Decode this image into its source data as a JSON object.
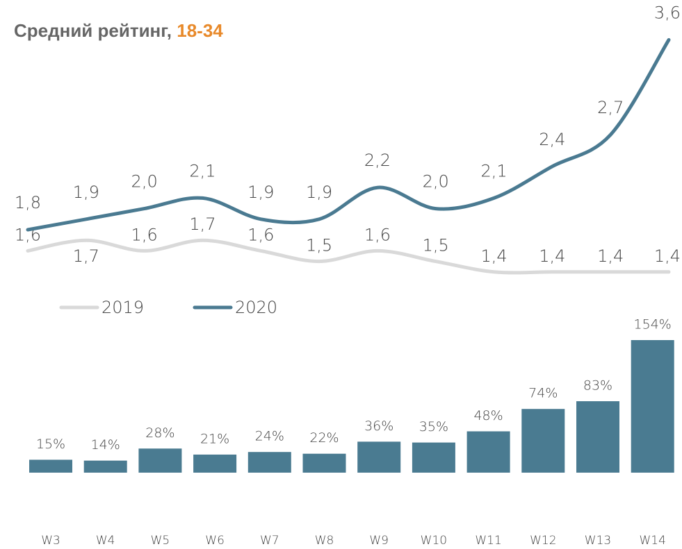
{
  "title": "Средний рейтинг,",
  "title_accent": "18-34",
  "chart_data": [
    {
      "type": "line",
      "series": [
        {
          "name": "2019",
          "color": "#d9d9d9",
          "values": [
            1.6,
            1.7,
            1.6,
            1.7,
            1.6,
            1.5,
            1.6,
            1.5,
            1.4,
            1.4,
            1.4,
            1.4
          ],
          "value_labels": [
            "1,6",
            "1,7",
            "1,6",
            "1,7",
            "1,6",
            "1,5",
            "1,6",
            "1,5",
            "1,4",
            "1,4",
            "1,4",
            "1,4"
          ]
        },
        {
          "name": "2020",
          "color": "#4a7a91",
          "values": [
            1.8,
            1.9,
            2.0,
            2.1,
            1.9,
            1.9,
            2.2,
            2.0,
            2.1,
            2.4,
            2.7,
            3.6
          ],
          "value_labels": [
            "1,8",
            "1,9",
            "2,0",
            "2,1",
            "1,9",
            "1,9",
            "2,2",
            "2,0",
            "2,1",
            "2,4",
            "2,7",
            "3,6"
          ]
        }
      ]
    },
    {
      "type": "bar",
      "color": "#4a7b91",
      "categories": [
        "W3",
        "W4",
        "W5",
        "W6",
        "W7",
        "W8",
        "W9",
        "W10",
        "W11",
        "W12",
        "W13",
        "W14"
      ],
      "values": [
        15,
        14,
        28,
        21,
        24,
        22,
        36,
        35,
        48,
        74,
        83,
        154
      ],
      "value_labels": [
        "15%",
        "14%",
        "28%",
        "21%",
        "24%",
        "22%",
        "36%",
        "35%",
        "48%",
        "74%",
        "83%",
        "154%"
      ]
    }
  ]
}
